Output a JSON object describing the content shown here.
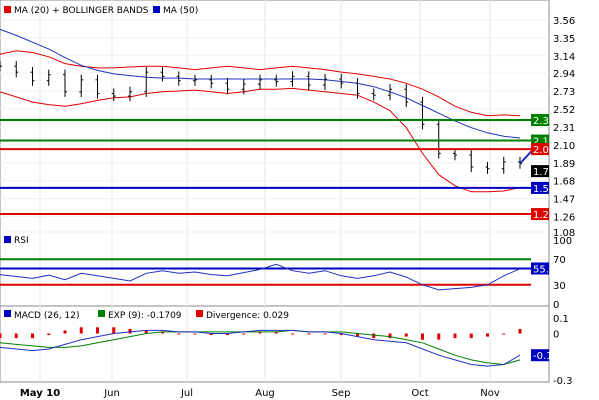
{
  "chart_data": [
    {
      "panel": "price",
      "type": "line",
      "legend": [
        {
          "label": "MA (20) + BOLLINGER BANDS",
          "color": "#e00000"
        },
        {
          "label": "MA (50)",
          "color": "#0000c0"
        }
      ],
      "yticks": [
        "3.56",
        "3.35",
        "3.14",
        "2.94",
        "2.73",
        "2.52",
        "2.31",
        "2.10",
        "1.89",
        "1.68",
        "1.47",
        "1.26",
        "1.08"
      ],
      "ylim": [
        1.08,
        3.56
      ],
      "xticks": [
        "May 10",
        "Jun",
        "Jul",
        "Aug",
        "Sep",
        "Oct",
        "Nov"
      ],
      "price_x": [
        0,
        4,
        8,
        12,
        16,
        20,
        24,
        28,
        32,
        36,
        40,
        44,
        48,
        52,
        56,
        60,
        64,
        68,
        72,
        76,
        80,
        84,
        88,
        92,
        96,
        100,
        104,
        108,
        112,
        116,
        120,
        124,
        128
      ],
      "price_y": [
        3.02,
        2.95,
        2.85,
        2.92,
        2.72,
        2.86,
        2.7,
        2.67,
        2.72,
        2.95,
        2.9,
        2.85,
        2.86,
        2.82,
        2.75,
        2.81,
        2.86,
        2.84,
        2.9,
        2.8,
        2.87,
        2.82,
        2.7,
        2.68,
        2.75,
        2.6,
        2.34,
        2.0,
        1.98,
        1.84,
        1.82,
        1.9,
        1.88
      ],
      "bb_upper": [
        3.16,
        3.2,
        3.18,
        3.13,
        3.05,
        3.02,
        3.0,
        3.0,
        3.01,
        3.02,
        3.02,
        3.0,
        2.98,
        3.0,
        3.02,
        3.0,
        2.98,
        3.0,
        3.02,
        3.0,
        2.98,
        2.95,
        2.93,
        2.9,
        2.87,
        2.82,
        2.75,
        2.66,
        2.55,
        2.48,
        2.44,
        2.45,
        2.44
      ],
      "bb_lower": [
        2.72,
        2.66,
        2.6,
        2.57,
        2.55,
        2.58,
        2.62,
        2.65,
        2.66,
        2.7,
        2.72,
        2.73,
        2.74,
        2.72,
        2.7,
        2.72,
        2.75,
        2.75,
        2.76,
        2.74,
        2.72,
        2.7,
        2.68,
        2.6,
        2.5,
        2.3,
        2.0,
        1.75,
        1.62,
        1.55,
        1.55,
        1.56,
        1.6
      ],
      "ma20": [
        2.94,
        2.93,
        2.88,
        2.85,
        2.8,
        2.8,
        2.81,
        2.83,
        2.84,
        2.86,
        2.87,
        2.86,
        2.86,
        2.86,
        2.86,
        2.86,
        2.87,
        2.87,
        2.88,
        2.87,
        2.86,
        2.83,
        2.8,
        2.75,
        2.68,
        2.56,
        2.38,
        2.2,
        2.08,
        2.01,
        1.98,
        1.98,
        1.98
      ],
      "ma50": [
        3.45,
        3.38,
        3.3,
        3.22,
        3.12,
        3.03,
        2.97,
        2.93,
        2.91,
        2.89,
        2.88,
        2.88,
        2.87,
        2.87,
        2.87,
        2.87,
        2.87,
        2.87,
        2.87,
        2.87,
        2.86,
        2.84,
        2.82,
        2.78,
        2.72,
        2.65,
        2.56,
        2.47,
        2.38,
        2.3,
        2.24,
        2.2,
        2.18
      ],
      "levels": [
        {
          "value": 2.39,
          "label": "2.39",
          "color": "#008000"
        },
        {
          "value": 2.15,
          "label": "2.15",
          "color": "#008000"
        },
        {
          "value": 2.05,
          "label": "2.05",
          "color": "#e00000"
        },
        {
          "value": 1.792,
          "label": "1.792",
          "color": "#000000"
        },
        {
          "value": 1.5957,
          "label": "1.5957",
          "color": "#0000c0"
        },
        {
          "value": 1.29,
          "label": "1.29",
          "color": "#e00000"
        }
      ]
    },
    {
      "panel": "rsi",
      "type": "line",
      "legend": [
        {
          "label": "RSI",
          "color": "#0000c0"
        }
      ],
      "yticks": [
        "100",
        "70",
        "30",
        "0"
      ],
      "ylim": [
        0,
        100
      ],
      "series": [
        46,
        43,
        40,
        45,
        38,
        48,
        44,
        40,
        36,
        48,
        52,
        48,
        50,
        46,
        44,
        49,
        54,
        62,
        52,
        48,
        52,
        44,
        40,
        44,
        50,
        42,
        30,
        22,
        24,
        26,
        30,
        44,
        55
      ],
      "levels": [
        {
          "value": 70,
          "label": "70",
          "color": "#008000"
        },
        {
          "value": 55.51,
          "label": "55.51",
          "color": "#0000c0"
        },
        {
          "value": 30,
          "label": "30",
          "color": "#e00000"
        }
      ]
    },
    {
      "panel": "macd",
      "type": "line",
      "legend": [
        {
          "label": "MACD (26, 12)",
          "color": "#0000c0"
        },
        {
          "label": "EXP (9): -0.1709",
          "color": "#008000"
        },
        {
          "label": "Divergence: 0.029",
          "color": "#e00000"
        }
      ],
      "yticks": [
        "0.1",
        "0",
        "-0.3"
      ],
      "ylim": [
        -0.3,
        0.1
      ],
      "macd": [
        -0.09,
        -0.1,
        -0.11,
        -0.1,
        -0.07,
        -0.04,
        -0.02,
        0,
        0.01,
        0.02,
        0.02,
        0.01,
        0.01,
        0.0,
        0.0,
        0.01,
        0.02,
        0.02,
        0.02,
        0.01,
        0.01,
        0,
        -0.02,
        -0.04,
        -0.05,
        -0.06,
        -0.1,
        -0.14,
        -0.17,
        -0.2,
        -0.21,
        -0.2,
        -0.14
      ],
      "signal": [
        -0.06,
        -0.07,
        -0.08,
        -0.09,
        -0.09,
        -0.08,
        -0.06,
        -0.04,
        -0.02,
        0,
        0.01,
        0.01,
        0.01,
        0.01,
        0.01,
        0.01,
        0.01,
        0.01,
        0.02,
        0.01,
        0.01,
        0.01,
        0,
        -0.01,
        -0.02,
        -0.04,
        -0.06,
        -0.1,
        -0.14,
        -0.17,
        -0.19,
        -0.2,
        -0.17
      ],
      "divergence": [
        -0.03,
        -0.03,
        -0.03,
        -0.01,
        0.02,
        0.04,
        0.04,
        0.04,
        0.03,
        0.02,
        0.01,
        0,
        0,
        -0.01,
        -0.01,
        0,
        0.01,
        0.01,
        0,
        0,
        0,
        -0.01,
        -0.02,
        -0.03,
        -0.03,
        -0.02,
        -0.04,
        -0.04,
        -0.03,
        -0.03,
        -0.02,
        0,
        0.029
      ],
      "levels": [
        {
          "value": -0.14,
          "label": "-0.14",
          "color": "#0000c0"
        }
      ]
    }
  ]
}
